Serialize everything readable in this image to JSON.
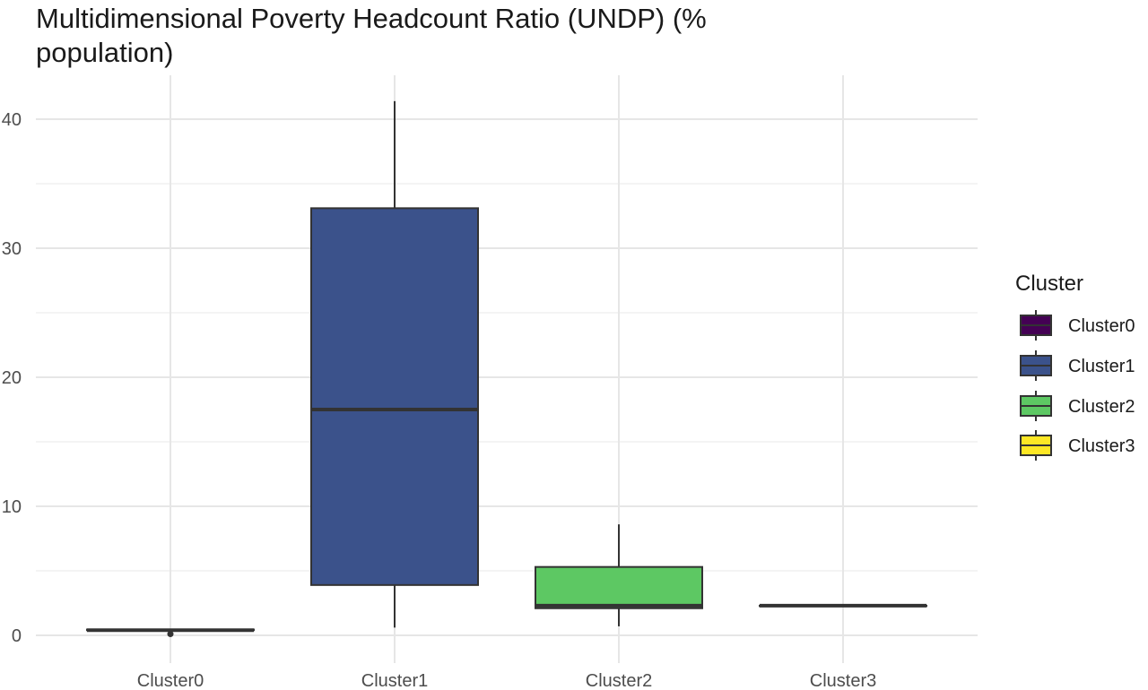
{
  "chart_data": {
    "type": "box",
    "title": "Multidimensional Poverty Headcount Ratio (UNDP) (% population)",
    "xlabel": "",
    "ylabel": "",
    "ylim": [
      -1.5,
      42.7
    ],
    "y_ticks": [
      0,
      10,
      20,
      30,
      40
    ],
    "categories": [
      "Cluster0",
      "Cluster1",
      "Cluster2",
      "Cluster3"
    ],
    "series": [
      {
        "name": "Cluster0",
        "color": "#440154",
        "min": 0.3,
        "q1": 0.4,
        "median": 0.4,
        "q3": 0.45,
        "max": 0.45,
        "outliers": [
          0.1
        ]
      },
      {
        "name": "Cluster1",
        "color": "#3B528B",
        "min": 0.6,
        "q1": 3.9,
        "median": 17.5,
        "q3": 33.1,
        "max": 41.4,
        "outliers": []
      },
      {
        "name": "Cluster2",
        "color": "#5DC863",
        "min": 0.7,
        "q1": 2.1,
        "median": 2.3,
        "q3": 5.3,
        "max": 8.6,
        "outliers": []
      },
      {
        "name": "Cluster3",
        "color": "#FDE725",
        "min": 2.3,
        "q1": 2.3,
        "median": 2.3,
        "q3": 2.3,
        "max": 2.3,
        "outliers": []
      }
    ],
    "grid": true,
    "legend": {
      "title": "Cluster",
      "position": "right"
    }
  }
}
